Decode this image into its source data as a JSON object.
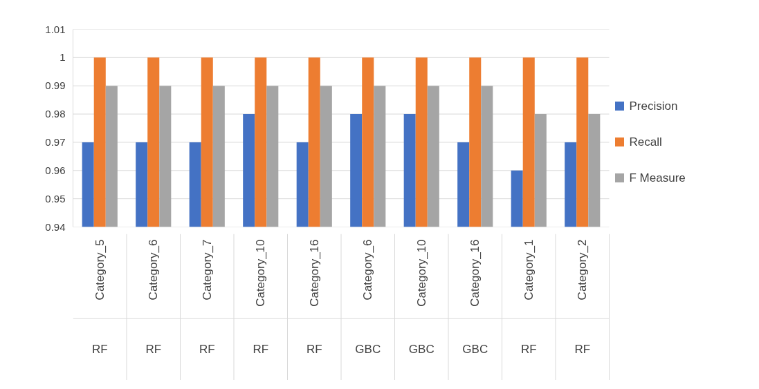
{
  "chart_data": {
    "type": "bar",
    "categories": [
      "Category_5\nRF",
      "Category_6\nRF",
      "Category_7\nRF",
      "Category_10\nRF",
      "Category_16\nRF",
      "Category_6\nGBC",
      "Category_10\nGBC",
      "Category_16\nGBC",
      "Category_1\nRF",
      "Category_2\nRF"
    ],
    "series": [
      {
        "name": "Precision",
        "color": "#4472c4",
        "values": [
          0.97,
          0.97,
          0.97,
          0.98,
          0.97,
          0.98,
          0.98,
          0.97,
          0.96,
          0.97
        ]
      },
      {
        "name": "Recall",
        "color": "#ed7d31",
        "values": [
          1,
          1,
          1,
          1,
          1,
          1,
          1,
          1,
          1,
          1
        ]
      },
      {
        "name": "F Measure",
        "color": "#a5a5a5",
        "values": [
          0.99,
          0.99,
          0.99,
          0.99,
          0.99,
          0.99,
          0.99,
          0.99,
          0.98,
          0.98
        ]
      }
    ],
    "ylim": [
      0.94,
      1.01
    ],
    "yticks": [
      0.94,
      0.95,
      0.96,
      0.97,
      0.98,
      0.99,
      1,
      1.01
    ],
    "grid": "y",
    "legend": "right"
  }
}
